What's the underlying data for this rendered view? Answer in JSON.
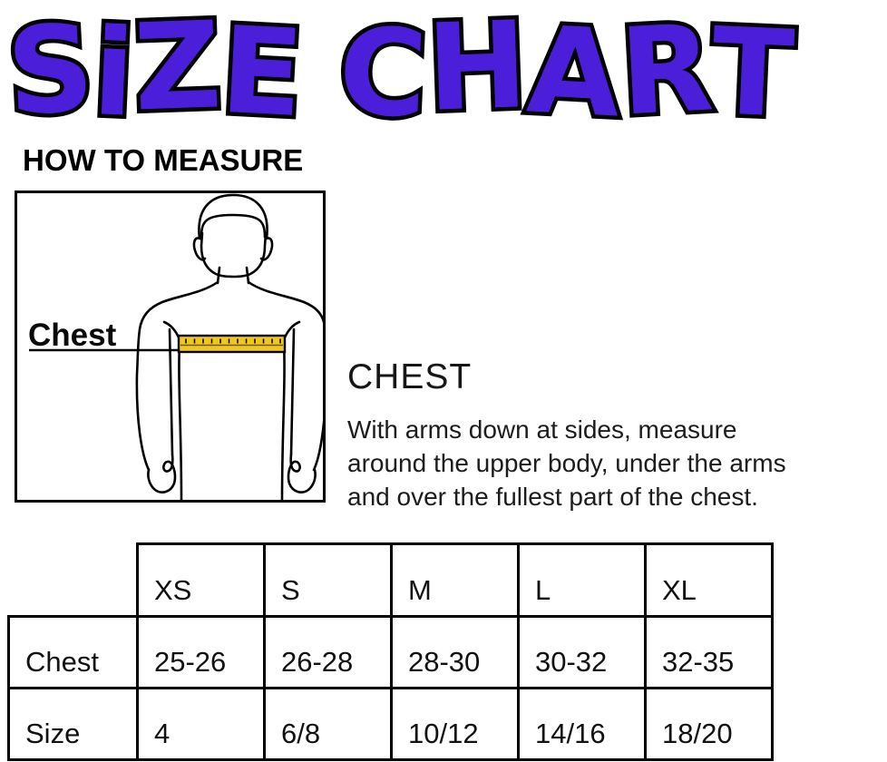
{
  "title": {
    "text": "SiZE CHART"
  },
  "colors": {
    "title-fill": "#4b1ed9",
    "title-stroke": "#000000",
    "tape-gold": "#f2c71d",
    "ink": "#000000"
  },
  "measure_section": {
    "heading": "HOW TO MEASURE",
    "figure": {
      "label": "Chest"
    }
  },
  "instructions": {
    "heading": "CHEST",
    "lines": [
      "With arms down at sides, measure",
      "around the upper body, under the arms",
      "and over the fullest part of the chest."
    ]
  },
  "size_table": {
    "columns": [
      "XS",
      "S",
      "M",
      "L",
      "XL"
    ],
    "rows": [
      {
        "label": "Chest",
        "values": [
          "25-26",
          "26-28",
          "28-30",
          "30-32",
          "32-35"
        ]
      },
      {
        "label": "Size",
        "values": [
          "4",
          "6/8",
          "10/12",
          "14/16",
          "18/20"
        ]
      }
    ]
  }
}
